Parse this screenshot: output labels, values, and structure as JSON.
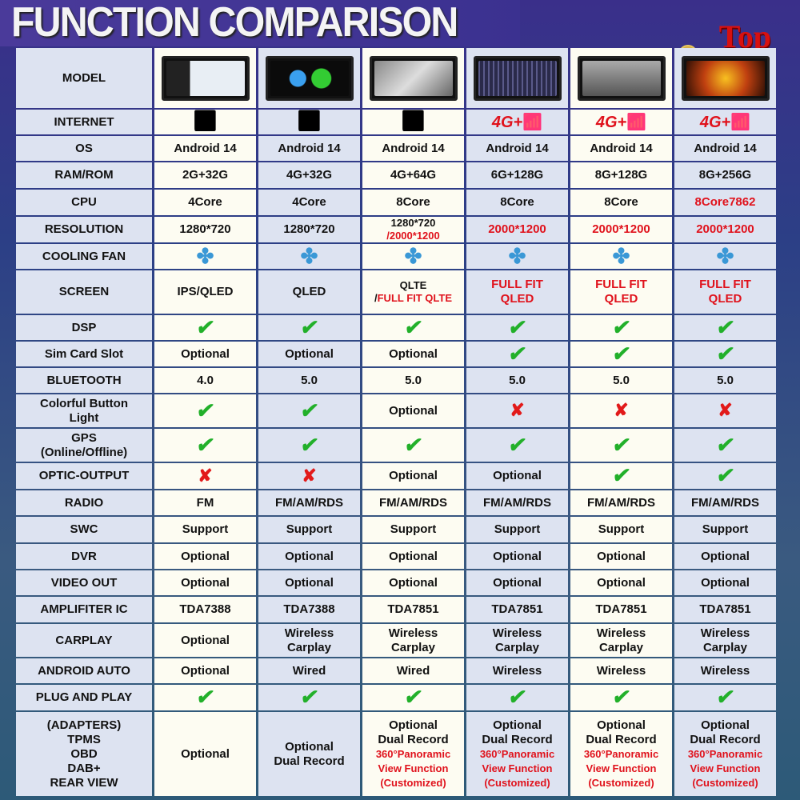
{
  "header": {
    "title": "FUNCTION COMPARISON",
    "badge": "Top"
  },
  "colors": {
    "red": "#e0121c",
    "check": "#22b02a",
    "fan": "#3a98d6"
  },
  "rows": [
    {
      "label": "MODEL",
      "cells": [
        {
          "img": "navigation-map"
        },
        {
          "img": "android-auto-carplay"
        },
        {
          "img": "360-camera"
        },
        {
          "img": "equalizer"
        },
        {
          "img": "reverse-camera"
        },
        {
          "img": "movie-scene"
        }
      ]
    },
    {
      "label": "INTERNET",
      "cells": [
        {
          "icon": "wifi"
        },
        {
          "icon": "wifi"
        },
        {
          "icon": "wifi"
        },
        {
          "icon": "4g-wifi",
          "t": "4G+"
        },
        {
          "icon": "4g-wifi",
          "t": "4G+"
        },
        {
          "icon": "4g-wifi",
          "t": "4G+"
        }
      ]
    },
    {
      "label": "OS",
      "cells": [
        {
          "t": "Android 14"
        },
        {
          "t": "Android 14"
        },
        {
          "t": "Android 14"
        },
        {
          "t": "Android 14"
        },
        {
          "t": "Android 14"
        },
        {
          "t": "Android 14"
        }
      ]
    },
    {
      "label": "RAM/ROM",
      "cells": [
        {
          "t": "2G+32G"
        },
        {
          "t": "4G+32G"
        },
        {
          "t": "4G+64G"
        },
        {
          "t": "6G+128G"
        },
        {
          "t": "8G+128G"
        },
        {
          "t": "8G+256G"
        }
      ]
    },
    {
      "label": "CPU",
      "cells": [
        {
          "t": "4Core"
        },
        {
          "t": "4Core"
        },
        {
          "t": "8Core"
        },
        {
          "t": "8Core"
        },
        {
          "t": "8Core"
        },
        {
          "t": "8Core7862",
          "red": true
        }
      ]
    },
    {
      "label": "RESOLUTION",
      "cells": [
        {
          "t": "1280*720"
        },
        {
          "t": "1280*720"
        },
        {
          "parts": [
            {
              "t": "1280*720\n"
            },
            {
              "t": "/2000*1200",
              "red": true
            }
          ],
          "small": true
        },
        {
          "t": "2000*1200",
          "red": true
        },
        {
          "t": "2000*1200",
          "red": true
        },
        {
          "t": "2000*1200",
          "red": true
        }
      ]
    },
    {
      "label": "COOLING FAN",
      "cells": [
        {
          "icon": "fan"
        },
        {
          "icon": "fan"
        },
        {
          "icon": "fan"
        },
        {
          "icon": "fan"
        },
        {
          "icon": "fan"
        },
        {
          "icon": "fan"
        }
      ]
    },
    {
      "label": "SCREEN",
      "cells": [
        {
          "t": "IPS/QLED"
        },
        {
          "t": "QLED"
        },
        {
          "parts": [
            {
              "t": "QLTE\n/"
            },
            {
              "t": "FULL FIT QLTE",
              "red": true
            }
          ],
          "small": true
        },
        {
          "t": "FULL FIT\nQLED",
          "red": true
        },
        {
          "t": "FULL FIT\nQLED",
          "red": true
        },
        {
          "t": "FULL FIT\nQLED",
          "red": true
        }
      ]
    },
    {
      "label": "DSP",
      "cells": [
        {
          "icon": "check"
        },
        {
          "icon": "check"
        },
        {
          "icon": "check"
        },
        {
          "icon": "check"
        },
        {
          "icon": "check"
        },
        {
          "icon": "check"
        }
      ]
    },
    {
      "label": "Sim Card Slot",
      "cells": [
        {
          "t": "Optional"
        },
        {
          "t": "Optional"
        },
        {
          "t": "Optional"
        },
        {
          "icon": "check"
        },
        {
          "icon": "check"
        },
        {
          "icon": "check"
        }
      ]
    },
    {
      "label": "BLUETOOTH",
      "cells": [
        {
          "t": "4.0"
        },
        {
          "t": "5.0"
        },
        {
          "t": "5.0"
        },
        {
          "t": "5.0"
        },
        {
          "t": "5.0"
        },
        {
          "t": "5.0"
        }
      ]
    },
    {
      "label": "Colorful Button\nLight",
      "cells": [
        {
          "icon": "check"
        },
        {
          "icon": "check"
        },
        {
          "t": "Optional"
        },
        {
          "icon": "cross"
        },
        {
          "icon": "cross"
        },
        {
          "icon": "cross"
        }
      ]
    },
    {
      "label": "GPS\n(Online/Offline)",
      "cells": [
        {
          "icon": "check"
        },
        {
          "icon": "check"
        },
        {
          "icon": "check"
        },
        {
          "icon": "check"
        },
        {
          "icon": "check"
        },
        {
          "icon": "check"
        }
      ]
    },
    {
      "label": "OPTIC-OUTPUT",
      "cells": [
        {
          "icon": "cross"
        },
        {
          "icon": "cross"
        },
        {
          "t": "Optional"
        },
        {
          "t": "Optional"
        },
        {
          "icon": "check"
        },
        {
          "icon": "check"
        }
      ]
    },
    {
      "label": "RADIO",
      "cells": [
        {
          "t": "FM"
        },
        {
          "t": "FM/AM/RDS"
        },
        {
          "t": "FM/AM/RDS"
        },
        {
          "t": "FM/AM/RDS"
        },
        {
          "t": "FM/AM/RDS"
        },
        {
          "t": "FM/AM/RDS"
        }
      ]
    },
    {
      "label": "SWC",
      "cells": [
        {
          "t": "Support"
        },
        {
          "t": "Support"
        },
        {
          "t": "Support"
        },
        {
          "t": "Support"
        },
        {
          "t": "Support"
        },
        {
          "t": "Support"
        }
      ]
    },
    {
      "label": "DVR",
      "cells": [
        {
          "t": "Optional"
        },
        {
          "t": "Optional"
        },
        {
          "t": "Optional"
        },
        {
          "t": "Optional"
        },
        {
          "t": "Optional"
        },
        {
          "t": "Optional"
        }
      ]
    },
    {
      "label": "VIDEO OUT",
      "cells": [
        {
          "t": "Optional"
        },
        {
          "t": "Optional"
        },
        {
          "t": "Optional"
        },
        {
          "t": "Optional"
        },
        {
          "t": "Optional"
        },
        {
          "t": "Optional"
        }
      ]
    },
    {
      "label": "AMPLIFITER IC",
      "cells": [
        {
          "t": "TDA7388"
        },
        {
          "t": "TDA7388"
        },
        {
          "t": "TDA7851"
        },
        {
          "t": "TDA7851"
        },
        {
          "t": "TDA7851"
        },
        {
          "t": "TDA7851"
        }
      ]
    },
    {
      "label": "CARPLAY",
      "cells": [
        {
          "t": "Optional"
        },
        {
          "t": "Wireless\nCarplay"
        },
        {
          "t": "Wireless\nCarplay"
        },
        {
          "t": "Wireless\nCarplay"
        },
        {
          "t": "Wireless\nCarplay"
        },
        {
          "t": "Wireless\nCarplay"
        }
      ]
    },
    {
      "label": "ANDROID AUTO",
      "cells": [
        {
          "t": "Optional"
        },
        {
          "t": "Wired"
        },
        {
          "t": "Wired"
        },
        {
          "t": "Wireless"
        },
        {
          "t": "Wireless"
        },
        {
          "t": "Wireless"
        }
      ]
    },
    {
      "label": "PLUG AND PLAY",
      "cells": [
        {
          "icon": "check"
        },
        {
          "icon": "check"
        },
        {
          "icon": "check"
        },
        {
          "icon": "check"
        },
        {
          "icon": "check"
        },
        {
          "icon": "check"
        }
      ]
    },
    {
      "label": "(ADAPTERS)\nTPMS\nOBD\nDAB+\nREAR VIEW",
      "cells": [
        {
          "t": "Optional"
        },
        {
          "t": "Optional\nDual Record"
        },
        {
          "parts": [
            {
              "t": "Optional\nDual Record\n"
            },
            {
              "t": "360°Panoramic\nView Function\n(Customized)",
              "red": true,
              "small": true
            }
          ]
        },
        {
          "parts": [
            {
              "t": "Optional\nDual Record\n"
            },
            {
              "t": "360°Panoramic\nView Function\n(Customized)",
              "red": true,
              "small": true
            }
          ]
        },
        {
          "parts": [
            {
              "t": "Optional\nDual Record\n"
            },
            {
              "t": "360°Panoramic\nView Function\n(Customized)",
              "red": true,
              "small": true
            }
          ]
        },
        {
          "parts": [
            {
              "t": "Optional\nDual Record\n"
            },
            {
              "t": "360°Panoramic\nView Function\n(Customized)",
              "red": true,
              "small": true
            }
          ]
        }
      ]
    }
  ]
}
